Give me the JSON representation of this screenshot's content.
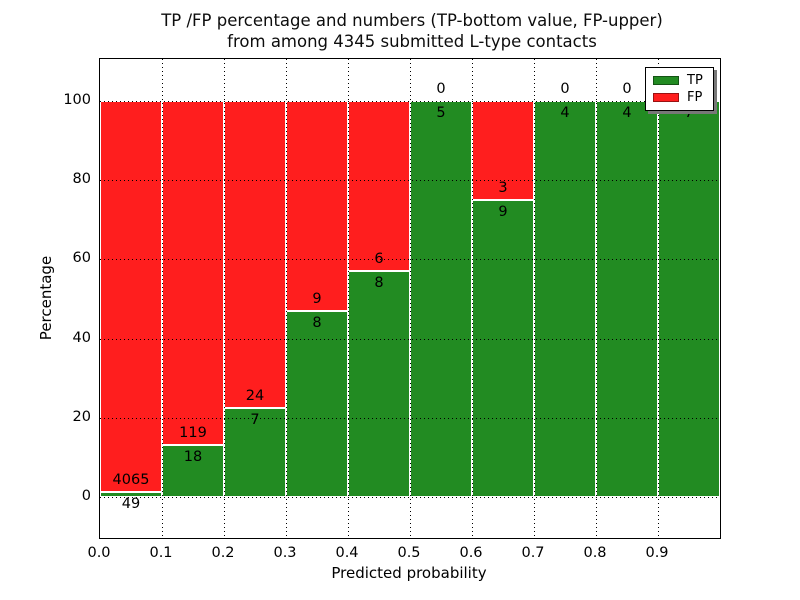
{
  "figure": {
    "title_line1": "TP /FP percentage and numbers (TP-bottom value, FP-upper)",
    "title_line2": "from among 4345 submitted L-type contacts"
  },
  "chart_data": {
    "type": "bar",
    "stacked": true,
    "title": "TP /FP percentage and numbers (TP-bottom value, FP-upper) from among 4345 submitted L-type contacts",
    "xlabel": "Predicted probability",
    "ylabel": "Percentage",
    "total_contacts": 4345,
    "grid": true,
    "legend_position": "upper right",
    "x_tick_labels": [
      "0.0",
      "0.1",
      "0.2",
      "0.3",
      "0.4",
      "0.5",
      "0.6",
      "0.7",
      "0.8",
      "0.9"
    ],
    "y_tick_values": [
      0,
      20,
      40,
      60,
      80,
      100
    ],
    "y_tick_labels": [
      "0",
      "20",
      "40",
      "60",
      "80",
      "100"
    ],
    "xlim": [
      0.0,
      1.0
    ],
    "ylim": [
      -10.5,
      110.5
    ],
    "series": [
      {
        "name": "TP",
        "color": "#228b22"
      },
      {
        "name": "FP",
        "color": "#ff1e1e"
      }
    ],
    "bins": [
      {
        "x_start": 0.0,
        "x_end": 0.1,
        "tp": 49,
        "fp": 4065,
        "tp_pct": 1.19,
        "fp_pct": 98.81
      },
      {
        "x_start": 0.1,
        "x_end": 0.2,
        "tp": 18,
        "fp": 119,
        "tp_pct": 13.14,
        "fp_pct": 86.86
      },
      {
        "x_start": 0.2,
        "x_end": 0.3,
        "tp": 7,
        "fp": 24,
        "tp_pct": 22.58,
        "fp_pct": 77.42
      },
      {
        "x_start": 0.3,
        "x_end": 0.4,
        "tp": 8,
        "fp": 9,
        "tp_pct": 47.06,
        "fp_pct": 52.94
      },
      {
        "x_start": 0.4,
        "x_end": 0.5,
        "tp": 8,
        "fp": 6,
        "tp_pct": 57.14,
        "fp_pct": 42.86
      },
      {
        "x_start": 0.5,
        "x_end": 0.6,
        "tp": 5,
        "fp": 0,
        "tp_pct": 100,
        "fp_pct": 0
      },
      {
        "x_start": 0.6,
        "x_end": 0.7,
        "tp": 9,
        "fp": 3,
        "tp_pct": 75,
        "fp_pct": 25
      },
      {
        "x_start": 0.7,
        "x_end": 0.8,
        "tp": 4,
        "fp": 0,
        "tp_pct": 100,
        "fp_pct": 0
      },
      {
        "x_start": 0.8,
        "x_end": 0.9,
        "tp": 4,
        "fp": 0,
        "tp_pct": 100,
        "fp_pct": 0
      },
      {
        "x_start": 0.9,
        "x_end": 1.0,
        "tp": 7,
        "fp": 0,
        "tp_pct": 100,
        "fp_pct": 0
      }
    ]
  }
}
